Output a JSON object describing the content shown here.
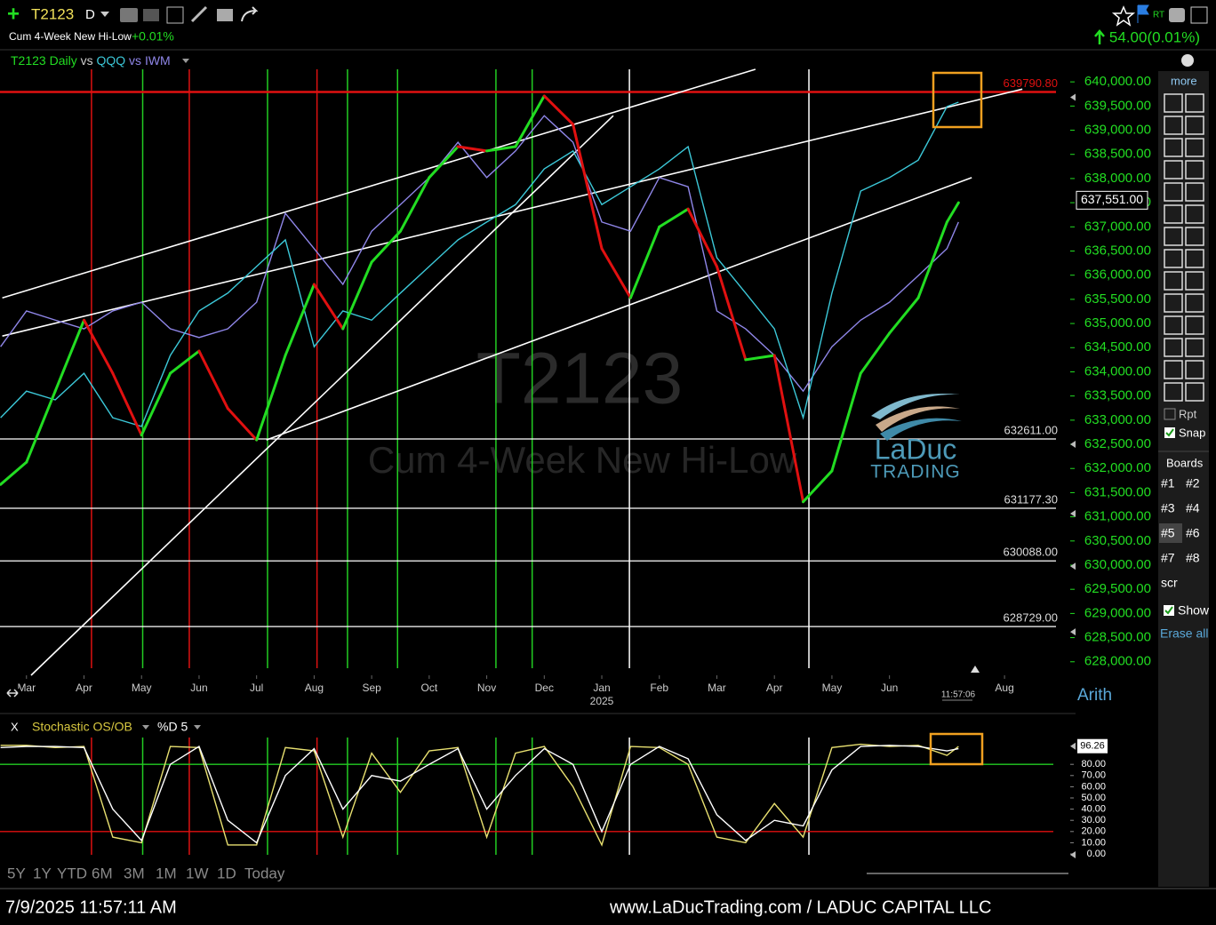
{
  "toolbar": {
    "symbol": "T2123",
    "interval": "D",
    "study": "Cum 4-Week New Hi-Low",
    "study_change": "+0.01%",
    "rt": "RT",
    "change": "54.00(0.01%)"
  },
  "chart_data": [
    {
      "type": "line",
      "legend_separator": "vs",
      "watermark": [
        "T2123",
        "Cum 4-Week New Hi-Low"
      ],
      "x": [
        -0.45,
        0,
        0.5,
        1,
        1.5,
        2,
        2.5,
        3,
        3.5,
        4,
        4.5,
        5,
        5.5,
        6,
        6.5,
        7,
        7.5,
        8,
        8.5,
        9,
        9.5,
        10,
        10.5,
        11,
        11.5,
        12,
        12.5,
        13,
        13.5,
        14,
        14.5,
        15,
        15.5,
        16,
        16.2
      ],
      "xlim": [
        -0.46,
        18.08
      ],
      "xticks": [
        {
          "value": 0,
          "label": "Mar"
        },
        {
          "value": 1,
          "label": "Apr"
        },
        {
          "value": 2,
          "label": "May"
        },
        {
          "value": 3,
          "label": "Jun"
        },
        {
          "value": 4,
          "label": "Jul"
        },
        {
          "value": 5,
          "label": "Aug"
        },
        {
          "value": 6,
          "label": "Sep"
        },
        {
          "value": 7,
          "label": "Oct"
        },
        {
          "value": 8,
          "label": "Nov"
        },
        {
          "value": 9,
          "label": "Dec"
        },
        {
          "value": 10,
          "label": "Jan"
        },
        {
          "value": 11,
          "label": "Feb"
        },
        {
          "value": 12,
          "label": "Mar"
        },
        {
          "value": 13,
          "label": "Apr"
        },
        {
          "value": 14,
          "label": "May"
        },
        {
          "value": 15,
          "label": "Jun"
        },
        {
          "value": 17,
          "label": "Aug"
        }
      ],
      "year_label": "2025",
      "ylim": [
        627720,
        640260
      ],
      "yticks": [
        {
          "value": 640000,
          "label": "640,000.00"
        },
        {
          "value": 639500,
          "label": "639,500.00"
        },
        {
          "value": 639000,
          "label": "639,000.00"
        },
        {
          "value": 638500,
          "label": "638,500.00"
        },
        {
          "value": 638000,
          "label": "638,000.00"
        },
        {
          "value": 637500,
          "label": "637,500.00"
        },
        {
          "value": 637000,
          "label": "637,000.00"
        },
        {
          "value": 636500,
          "label": "636,500.00"
        },
        {
          "value": 636000,
          "label": "636,000.00"
        },
        {
          "value": 635500,
          "label": "635,500.00"
        },
        {
          "value": 635000,
          "label": "635,000.00"
        },
        {
          "value": 634500,
          "label": "634,500.00"
        },
        {
          "value": 634000,
          "label": "634,000.00"
        },
        {
          "value": 633500,
          "label": "633,500.00"
        },
        {
          "value": 633000,
          "label": "633,000.00"
        },
        {
          "value": 632500,
          "label": "632,500.00"
        },
        {
          "value": 632000,
          "label": "632,000.00"
        },
        {
          "value": 631500,
          "label": "631,500.00"
        },
        {
          "value": 631000,
          "label": "631,000.00"
        },
        {
          "value": 630500,
          "label": "630,500.00"
        },
        {
          "value": 630000,
          "label": "630,000.00"
        },
        {
          "value": 629500,
          "label": "629,500.00"
        },
        {
          "value": 629000,
          "label": "629,000.00"
        },
        {
          "value": 628500,
          "label": "628,500.00"
        },
        {
          "value": 628000,
          "label": "628,000.00"
        }
      ],
      "current_value": {
        "value": 637551,
        "label": "637,551.00"
      },
      "scale_label": "Arith",
      "time_label": "11:57:06",
      "series": [
        {
          "name": "T2123 Daily",
          "color": "#22dd22",
          "down_color": "#e01010",
          "values": [
            631670,
            632130,
            633600,
            635070,
            633970,
            632690,
            633970,
            634430,
            633240,
            632590,
            634340,
            635810,
            634890,
            636270,
            636910,
            638020,
            638660,
            638570,
            638660,
            639710,
            639120,
            636550,
            635530,
            637000,
            637370,
            636180,
            634250,
            634340,
            631310,
            631950,
            633970,
            634800,
            635530,
            637100,
            637500
          ]
        },
        {
          "name": "QQQ",
          "color": "#3cc8d8",
          "values": [
            633050,
            633600,
            633420,
            633970,
            633050,
            632870,
            634340,
            635260,
            635630,
            636180,
            636730,
            634520,
            635260,
            635070,
            635630,
            636180,
            636730,
            637100,
            637460,
            638200,
            638570,
            637460,
            637830,
            638200,
            638660,
            636360,
            635630,
            634890,
            633050,
            635630,
            637740,
            638020,
            638380,
            639490,
            639580
          ]
        },
        {
          "name": "IWM",
          "color": "#8f86e8",
          "values": [
            634520,
            635260,
            635070,
            634890,
            635260,
            635440,
            634890,
            634710,
            634890,
            635440,
            637280,
            636550,
            635810,
            636910,
            637460,
            638020,
            638750,
            638020,
            638570,
            639300,
            638750,
            637100,
            636910,
            638020,
            637830,
            635260,
            634890,
            634340,
            633600,
            634520,
            635070,
            635440,
            635990,
            636550,
            637100
          ]
        }
      ],
      "hlines": [
        {
          "value": 639790.8,
          "label": "639790.80",
          "color": "#e01010"
        },
        {
          "value": 632611,
          "label": "632611.00",
          "color": "#ffffff"
        },
        {
          "value": 631177.3,
          "label": "631177.30",
          "color": "#ffffff"
        },
        {
          "value": 630088,
          "label": "630088.00",
          "color": "#ffffff"
        },
        {
          "value": 628729,
          "label": "628729.00",
          "color": "#ffffff"
        }
      ],
      "vlines": [
        {
          "x": 1.13,
          "color": "#dd1111"
        },
        {
          "x": 2.02,
          "color": "#22cc22"
        },
        {
          "x": 2.83,
          "color": "#dd1111"
        },
        {
          "x": 4.19,
          "color": "#22cc22"
        },
        {
          "x": 5.05,
          "color": "#dd1111"
        },
        {
          "x": 5.58,
          "color": "#22cc22"
        },
        {
          "x": 6.45,
          "color": "#22cc22"
        },
        {
          "x": 8.16,
          "color": "#22cc22"
        },
        {
          "x": 8.79,
          "color": "#22cc22"
        },
        {
          "x": 10.48,
          "color": "#ffffff"
        },
        {
          "x": 13.6,
          "color": "#ffffff"
        }
      ],
      "trendlines": [
        {
          "x": [
            -0.42,
            12.67
          ],
          "y": [
            635530,
            640260
          ]
        },
        {
          "x": [
            -0.42,
            17.31
          ],
          "y": [
            634740,
            639850
          ]
        },
        {
          "x": [
            4.17,
            16.43
          ],
          "y": [
            632590,
            638020
          ]
        },
        {
          "x": [
            0.08,
            10.2
          ],
          "y": [
            627720,
            639300
          ]
        }
      ]
    },
    {
      "type": "line",
      "title": "Stochastic OS/OB",
      "subtitle": "%D 5",
      "close_label": "X",
      "x": [
        -0.45,
        0,
        0.5,
        1,
        1.5,
        2,
        2.5,
        3,
        3.5,
        4,
        4.5,
        5,
        5.5,
        6,
        6.5,
        7,
        7.5,
        8,
        8.5,
        9,
        9.5,
        10,
        10.5,
        11,
        11.5,
        12,
        12.5,
        13,
        13.5,
        14,
        14.5,
        15,
        15.5,
        16,
        16.2
      ],
      "xlim": [
        -0.46,
        18.08
      ],
      "ylim": [
        0,
        100
      ],
      "yticks": [
        {
          "value": 0,
          "label": "0.00"
        },
        {
          "value": 10,
          "label": "10.00"
        },
        {
          "value": 20,
          "label": "20.00"
        },
        {
          "value": 30,
          "label": "30.00"
        },
        {
          "value": 40,
          "label": "40.00"
        },
        {
          "value": 50,
          "label": "50.00"
        },
        {
          "value": 60,
          "label": "60.00"
        },
        {
          "value": 70,
          "label": "70.00"
        },
        {
          "value": 80,
          "label": "80.00"
        }
      ],
      "current_value": {
        "value": 96.26,
        "label": "96.26"
      },
      "hlines": [
        {
          "value": 80,
          "color": "#22cc22"
        },
        {
          "value": 20,
          "color": "#e01010"
        }
      ],
      "series": [
        {
          "color": "#e8e070",
          "values": [
            97,
            97,
            95,
            96,
            15,
            10,
            96,
            95,
            8,
            8,
            95,
            92,
            15,
            90,
            55,
            92,
            95,
            15,
            90,
            96,
            60,
            8,
            96,
            95,
            80,
            15,
            10,
            45,
            15,
            95,
            98,
            96,
            97,
            88,
            96
          ]
        },
        {
          "color": "#ffffff",
          "values": [
            95,
            96,
            96,
            95,
            40,
            12,
            80,
            96,
            30,
            10,
            70,
            94,
            40,
            70,
            65,
            80,
            94,
            40,
            70,
            94,
            80,
            20,
            80,
            96,
            85,
            35,
            12,
            30,
            25,
            75,
            96,
            97,
            96,
            92,
            94
          ]
        }
      ]
    }
  ],
  "sidebar": {
    "more": "more",
    "options": [
      "Rpt",
      "Snap"
    ],
    "boards_title": "Boards",
    "boards": [
      "#1",
      "#2",
      "#3",
      "#4",
      "#5",
      "#6",
      "#7",
      "#8",
      "scr"
    ],
    "show": "Show",
    "erase": "Erase all"
  },
  "logo": [
    "LaDuc",
    "TRADING"
  ],
  "ranges": [
    "5Y",
    "1Y",
    "YTD",
    "6M",
    "3M",
    "1M",
    "1W",
    "1D",
    "Today"
  ],
  "footer": {
    "timestamp": "7/9/2025 11:57:11 AM",
    "site": "www.LaDucTrading.com / LADUC CAPITAL LLC"
  }
}
